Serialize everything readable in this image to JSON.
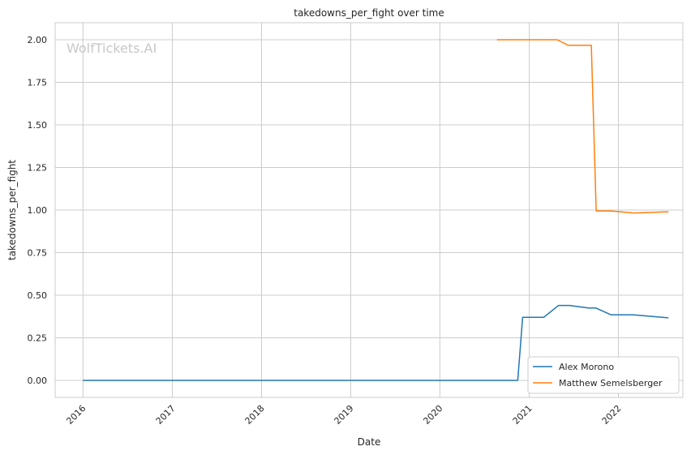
{
  "watermark": "WolfTickets.AI",
  "chart_data": {
    "type": "line",
    "title": "takedowns_per_fight over time",
    "xlabel": "Date",
    "ylabel": "takedowns_per_fight",
    "x_ticks": [
      "2016",
      "2017",
      "2018",
      "2019",
      "2020",
      "2021",
      "2022"
    ],
    "y_ticks": [
      "0.00",
      "0.25",
      "0.50",
      "0.75",
      "1.00",
      "1.25",
      "1.50",
      "1.75",
      "2.00"
    ],
    "xlim": [
      "2015-09-09",
      "2022-09-22"
    ],
    "ylim": [
      -0.1,
      2.1
    ],
    "grid": true,
    "legend_position": "lower-right",
    "series": [
      {
        "name": "Alex Morono",
        "color": "#1f77b4",
        "points": [
          [
            "2016-01-01",
            0.0
          ],
          [
            "2020-11-15",
            0.0
          ],
          [
            "2020-12-05",
            0.37
          ],
          [
            "2021-03-01",
            0.37
          ],
          [
            "2021-05-01",
            0.44
          ],
          [
            "2021-06-15",
            0.44
          ],
          [
            "2021-09-01",
            0.425
          ],
          [
            "2021-10-01",
            0.425
          ],
          [
            "2021-12-01",
            0.385
          ],
          [
            "2022-03-01",
            0.385
          ],
          [
            "2022-07-25",
            0.367
          ]
        ]
      },
      {
        "name": "Matthew Semelsberger",
        "color": "#ff7f0e",
        "points": [
          [
            "2020-08-22",
            2.0
          ],
          [
            "2021-04-25",
            2.0
          ],
          [
            "2021-06-10",
            1.967
          ],
          [
            "2021-09-12",
            1.967
          ],
          [
            "2021-10-02",
            0.995
          ],
          [
            "2021-12-01",
            0.995
          ],
          [
            "2022-03-05",
            0.983
          ],
          [
            "2022-07-25",
            0.99
          ]
        ]
      }
    ]
  }
}
